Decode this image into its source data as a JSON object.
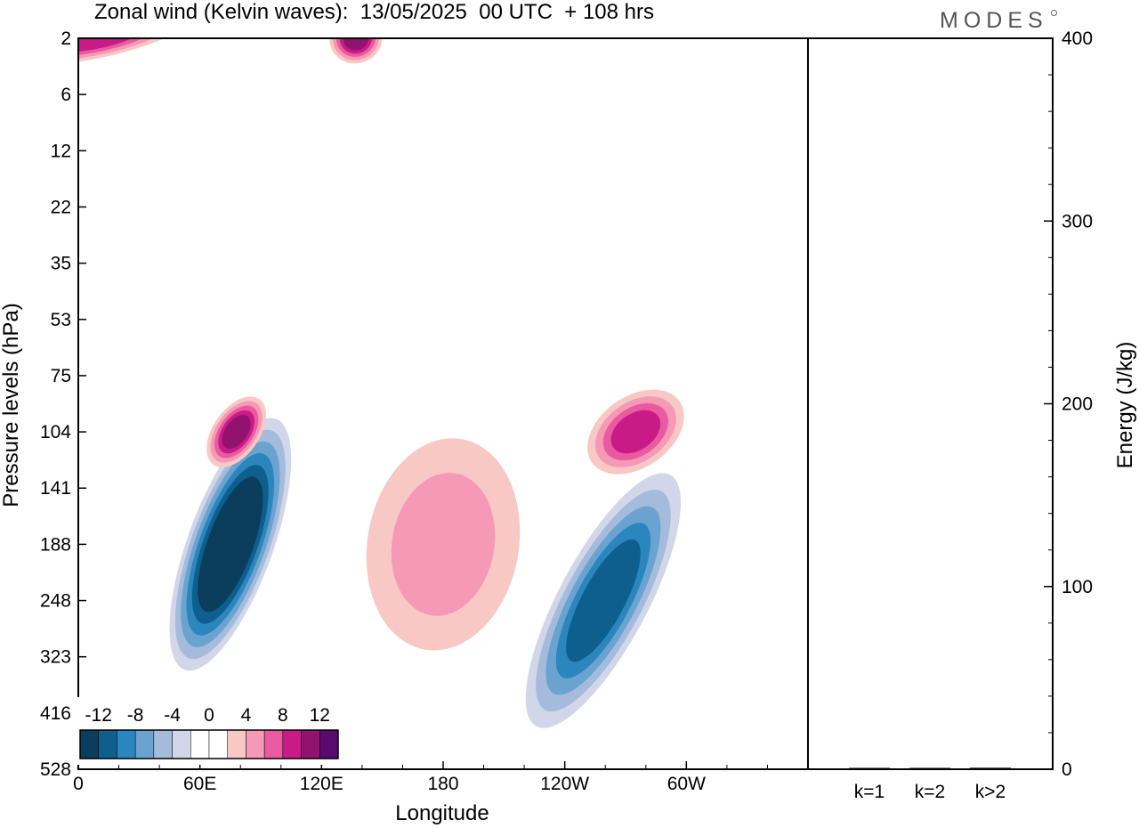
{
  "header": {
    "title": "Zonal wind (Kelvin waves):  13/05/2025  00 UTC  + 108 hrs",
    "brand": "MODES"
  },
  "chart_data": [
    {
      "type": "heatmap",
      "title": "Zonal wind (Kelvin waves):  13/05/2025  00 UTC  + 108 hrs",
      "xlabel": "Longitude",
      "ylabel": "Pressure levels (hPa)",
      "x_ticks": [
        "0",
        "60E",
        "120E",
        "180",
        "120W",
        "60W"
      ],
      "y_ticks": [
        "2",
        "6",
        "12",
        "22",
        "35",
        "53",
        "75",
        "104",
        "141",
        "188",
        "248",
        "323",
        "416",
        "528"
      ],
      "y_scale": "log-pressure (level index)",
      "colorbar": {
        "labels": [
          "-12",
          "-8",
          "-4",
          "0",
          "4",
          "8",
          "12"
        ],
        "levels": [
          -14,
          -12,
          -10,
          -8,
          -6,
          -4,
          -2,
          2,
          4,
          6,
          8,
          10,
          12,
          14
        ],
        "colors": [
          "#0b3d5c",
          "#0e5f8e",
          "#2a86bd",
          "#6aa3cf",
          "#a4bbdc",
          "#d2d6e9",
          "#ffffff",
          "#ffffff",
          "#f8c8c5",
          "#f599b6",
          "#ea5aa0",
          "#c81b88",
          "#921270",
          "#5a0a6c"
        ]
      },
      "features": [
        {
          "sign": "negative",
          "peak": -14,
          "lon": 75,
          "level": "188"
        },
        {
          "sign": "negative",
          "peak": -10,
          "lon": 259,
          "level": "248"
        },
        {
          "sign": "positive",
          "peak": 10,
          "lon": 78,
          "level": "104"
        },
        {
          "sign": "positive",
          "peak": 8,
          "lon": 275,
          "level": "104"
        },
        {
          "sign": "positive",
          "peak": 8,
          "lon": 10,
          "level": "2"
        },
        {
          "sign": "positive",
          "peak": 10,
          "lon": 137,
          "level": "2"
        },
        {
          "sign": "positive",
          "peak": 4,
          "lon": 180,
          "level": "188"
        }
      ]
    },
    {
      "type": "bar",
      "categories": [
        "k=1",
        "k=2",
        "k>2"
      ],
      "values": [
        0.5,
        0.5,
        0.8
      ],
      "ylabel": "Energy (J/kg)",
      "ylim": [
        0,
        400
      ],
      "y_ticks": [
        "0",
        "100",
        "200",
        "300",
        "400"
      ]
    }
  ]
}
